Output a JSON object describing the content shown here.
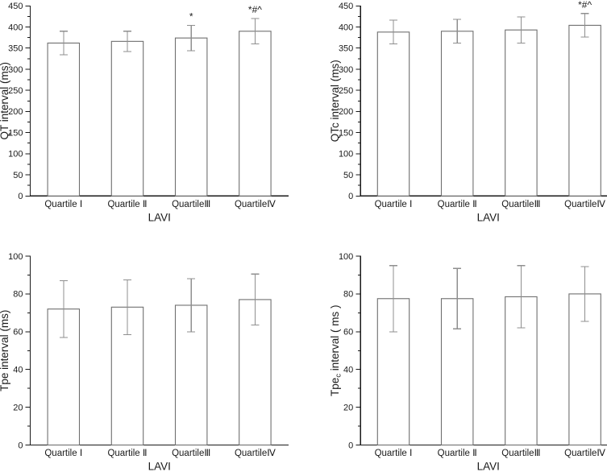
{
  "figure": {
    "background": "#ffffff",
    "layout": "2x2-grid-of-bar-charts"
  },
  "colors": {
    "axis": "#1a1a1a",
    "text": "#1a1a1a",
    "bar_stroke": "#6f6f6f",
    "bar_fill": "#ffffff",
    "error_bar": "#8f8f8f"
  },
  "chart_data": [
    {
      "id": "qt-interval",
      "type": "bar",
      "title": "",
      "xlabel": "LAVI",
      "ylabel": "QT interval (ms)",
      "categories": [
        "Quartile Ⅰ",
        "Quartile Ⅱ",
        "QuartileⅢ",
        "QuartileⅣ"
      ],
      "values": [
        362,
        366,
        374,
        390
      ],
      "errors": [
        28,
        24,
        30,
        30
      ],
      "annotations": [
        "",
        "",
        "*",
        "*#^"
      ],
      "ylim": [
        0,
        450
      ],
      "ytick_step": 50,
      "yminor_step": 25,
      "grid": false,
      "legend": "none"
    },
    {
      "id": "qtc-interval",
      "type": "bar",
      "title": "",
      "xlabel": "LAVI",
      "ylabel": "QTc interval (ms)",
      "categories": [
        "Quartile Ⅰ",
        "Quartile Ⅱ",
        "QuartileⅢ",
        "QuartileⅣ"
      ],
      "values": [
        388,
        390,
        393,
        404
      ],
      "errors": [
        28,
        28,
        31,
        28
      ],
      "annotations": [
        "",
        "",
        "",
        "*#^"
      ],
      "ylim": [
        0,
        450
      ],
      "ytick_step": 50,
      "yminor_step": 25,
      "grid": false,
      "legend": "none"
    },
    {
      "id": "tpe-interval",
      "type": "bar",
      "title": "",
      "xlabel": "LAVI",
      "ylabel": "Tpe interval (ms)",
      "categories": [
        "Quartile Ⅰ",
        "Quartile Ⅱ",
        "QuartileⅢ",
        "QuartileⅣ"
      ],
      "values": [
        72,
        73,
        74,
        77
      ],
      "errors": [
        15,
        14.5,
        14,
        13.5
      ],
      "annotations": [
        "",
        "",
        "",
        ""
      ],
      "ylim": [
        0,
        100
      ],
      "ytick_step": 20,
      "yminor_step": 10,
      "grid": false,
      "legend": "none"
    },
    {
      "id": "tpec-interval",
      "type": "bar",
      "title": "",
      "xlabel": "LAVI",
      "ylabel": "Tpec interval ( ms )",
      "ylabel_parts": [
        {
          "text": "Tpe"
        },
        {
          "text": "c",
          "sub": true
        },
        {
          "text": " interval ( ms )"
        }
      ],
      "categories": [
        "Quartile Ⅰ",
        "Quartile Ⅱ",
        "QuartileⅢ",
        "QuartileⅣ"
      ],
      "values": [
        77.5,
        77.5,
        78.5,
        80
      ],
      "errors": [
        17.5,
        16,
        16.5,
        14.5
      ],
      "annotations": [
        "",
        "",
        "",
        ""
      ],
      "ylim": [
        0,
        100
      ],
      "ytick_step": 20,
      "yminor_step": 10,
      "grid": false,
      "legend": "none"
    }
  ]
}
